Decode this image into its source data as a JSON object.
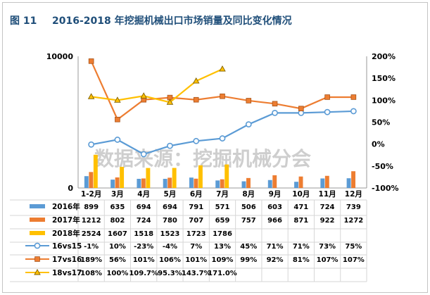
{
  "header": {
    "figure_no": "图 11",
    "title": "2016-2018 年挖掘机械出口市场销量及同比变化情况"
  },
  "watermark": "数据来源：挖掘机械分会",
  "colors": {
    "title": "#1f4e79",
    "s2016": "#5b9bd5",
    "s2017": "#ed7d31",
    "s2018": "#ffc000",
    "frame": "#c4c4c4"
  },
  "chart_data": {
    "type": "bar",
    "categories": [
      "1-2月",
      "3月",
      "4月",
      "5月",
      "6月",
      "7月",
      "8月",
      "9月",
      "10月",
      "11月",
      "12月"
    ],
    "y_left": {
      "ticks": [
        "0",
        "10000"
      ],
      "range": [
        0,
        10000
      ]
    },
    "y_right": {
      "ticks": [
        "-100%",
        "-50%",
        "0%",
        "50%",
        "100%",
        "150%",
        "200%"
      ],
      "range": [
        -100,
        200
      ]
    },
    "bar_series": [
      {
        "name": "2016年",
        "values": [
          899,
          635,
          694,
          694,
          791,
          571,
          506,
          603,
          471,
          724,
          739
        ]
      },
      {
        "name": "2017年",
        "values": [
          1212,
          802,
          724,
          780,
          707,
          659,
          757,
          966,
          871,
          922,
          1272
        ]
      },
      {
        "name": "2018年",
        "values": [
          2524,
          1607,
          1518,
          1523,
          1723,
          1786
        ]
      }
    ],
    "line_series": [
      {
        "name": "16vs15",
        "values": [
          -1,
          10,
          -23,
          -4,
          7,
          13,
          45,
          71,
          71,
          73,
          75
        ],
        "labels": [
          "-1%",
          "10%",
          "-23%",
          "-4%",
          "7%",
          "13%",
          "45%",
          "71%",
          "71%",
          "73%",
          "75%"
        ]
      },
      {
        "name": "17vs16",
        "values": [
          189,
          56,
          101,
          106,
          101,
          109,
          99,
          92,
          81,
          107,
          107
        ],
        "labels": [
          "189%",
          "56%",
          "101%",
          "106%",
          "101%",
          "109%",
          "99%",
          "92%",
          "81%",
          "107%",
          "107%"
        ]
      },
      {
        "name": "18vs17",
        "values": [
          108,
          100,
          109.7,
          95.3,
          143.7,
          171.0
        ],
        "labels": [
          "108%",
          "100%",
          "109.7%",
          "95.3%",
          "143.7%",
          "171.0%"
        ]
      }
    ],
    "grid": false,
    "legend": "table-below"
  }
}
